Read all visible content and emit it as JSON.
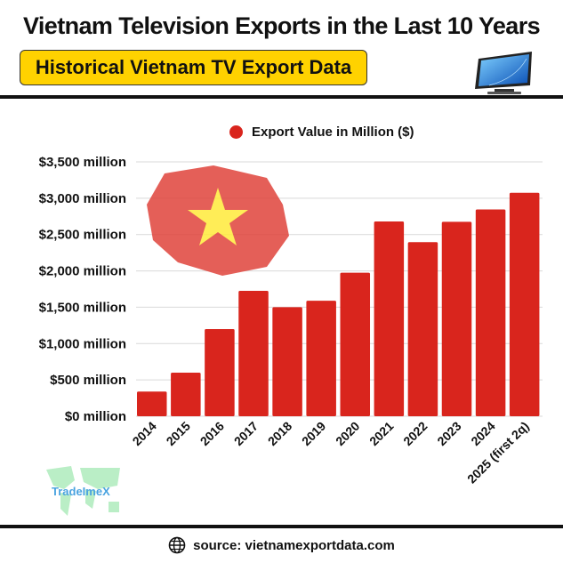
{
  "header": {
    "title": "Vietnam Television Exports in the Last 10 Years",
    "subtitle": "Historical Vietnam TV Export Data"
  },
  "footer": {
    "source": "source: vietnamexportdata.com",
    "icon": "globe-icon"
  },
  "logo": {
    "text": "TradeImeX"
  },
  "colors": {
    "bar": "#d9251d",
    "subtitle_bg": "#ffd200",
    "grid": "#d9d9d9"
  },
  "chart_data": {
    "type": "bar",
    "title": "Vietnam Television Exports in the Last 10 Years",
    "legend": {
      "position": "top",
      "entries": [
        "Export Value in Million ($)"
      ]
    },
    "categories": [
      "2014",
      "2015",
      "2016",
      "2017",
      "2018",
      "2019",
      "2020",
      "2021",
      "2022",
      "2023",
      "2024",
      "2025 (first 2q)"
    ],
    "series": [
      {
        "name": "Export Value in Million ($)",
        "values": [
          340,
          600,
          1200,
          1725,
          1500,
          1590,
          1975,
          2680,
          2395,
          2675,
          2845,
          3075
        ]
      }
    ],
    "ylim": [
      0,
      3500
    ],
    "yticks": [
      0,
      500,
      1000,
      1500,
      2000,
      2500,
      3000,
      3500
    ],
    "ytick_labels": [
      "$0 million",
      "$500 million",
      "$1,000 million",
      "$1,500 million",
      "$2,000 million",
      "$2,500 million",
      "$3,000 million",
      "$3,500 million"
    ],
    "grid": true,
    "xlabel": "",
    "ylabel": ""
  }
}
